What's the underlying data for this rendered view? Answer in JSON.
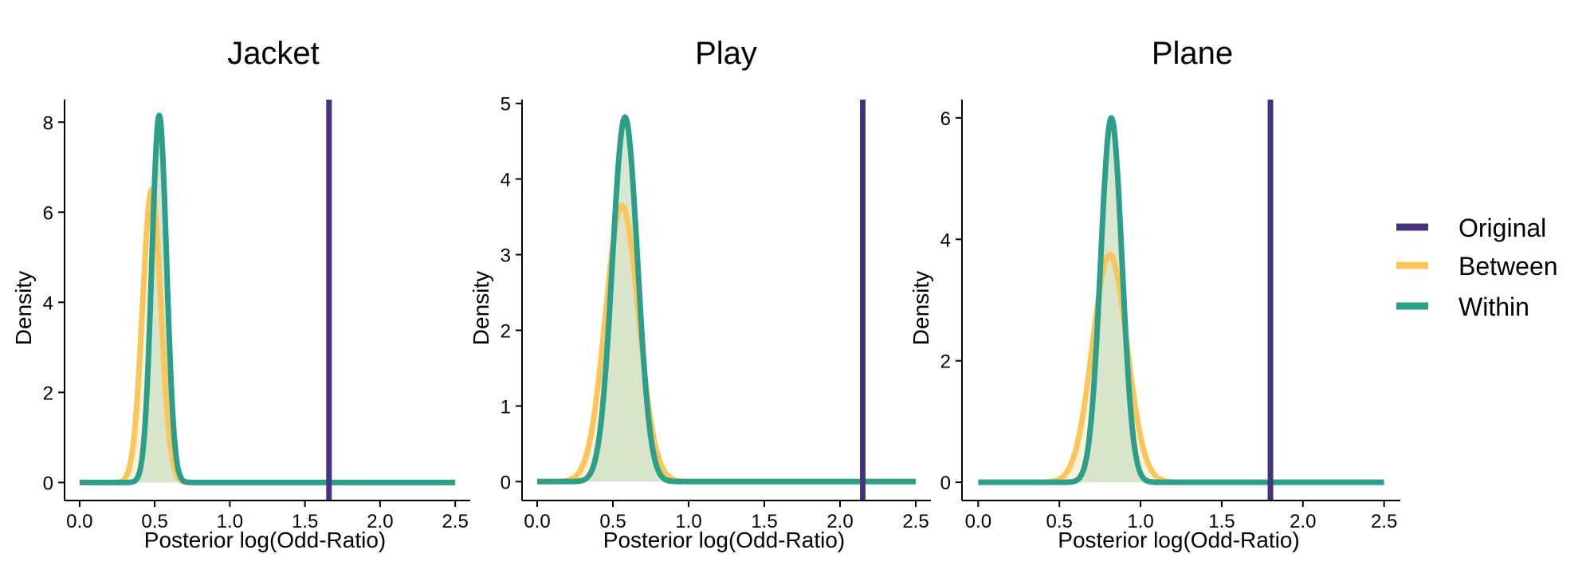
{
  "chart_data": [
    {
      "type": "line",
      "title": "Jacket",
      "xlabel": "Posterior log(Odd-Ratio)",
      "ylabel": "Density",
      "xlim": [
        -0.1,
        2.6
      ],
      "ylim": [
        -0.4,
        8.5
      ],
      "xticks": [
        "0.0",
        "0.5",
        "1.0",
        "1.5",
        "2.0",
        "2.5"
      ],
      "yticks": [
        "0",
        "2",
        "4",
        "6",
        "8"
      ],
      "original_x": 1.66,
      "series": [
        {
          "name": "Between",
          "mean": 0.48,
          "sd": 0.061,
          "peak": 6.5
        },
        {
          "name": "Within",
          "mean": 0.53,
          "sd": 0.049,
          "peak": 8.15
        }
      ]
    },
    {
      "type": "line",
      "title": "Play",
      "xlabel": "Posterior log(Odd-Ratio)",
      "ylabel": "Density",
      "xlim": [
        -0.1,
        2.6
      ],
      "ylim": [
        -0.25,
        5.05
      ],
      "xticks": [
        "0.0",
        "0.5",
        "1.0",
        "1.5",
        "2.0",
        "2.5"
      ],
      "yticks": [
        "0",
        "1",
        "2",
        "3",
        "4",
        "5"
      ],
      "original_x": 2.15,
      "series": [
        {
          "name": "Between",
          "mean": 0.56,
          "sd": 0.109,
          "peak": 3.65
        },
        {
          "name": "Within",
          "mean": 0.58,
          "sd": 0.083,
          "peak": 4.82
        }
      ]
    },
    {
      "type": "line",
      "title": "Plane",
      "xlabel": "Posterior log(Odd-Ratio)",
      "ylabel": "Density",
      "xlim": [
        -0.1,
        2.6
      ],
      "ylim": [
        -0.3,
        6.3
      ],
      "xticks": [
        "0.0",
        "0.5",
        "1.0",
        "1.5",
        "2.0",
        "2.5"
      ],
      "yticks": [
        "0",
        "2",
        "4",
        "6"
      ],
      "original_x": 1.8,
      "series": [
        {
          "name": "Between",
          "mean": 0.81,
          "sd": 0.106,
          "peak": 3.75
        },
        {
          "name": "Within",
          "mean": 0.82,
          "sd": 0.066,
          "peak": 6.0
        }
      ]
    }
  ],
  "legend": {
    "placement": "right",
    "items": [
      {
        "label": "Original",
        "color": "#46337e"
      },
      {
        "label": "Between",
        "color": "#fcc559"
      },
      {
        "label": "Within",
        "color": "#2c9f8a"
      }
    ]
  },
  "colors": {
    "original": "#46337e",
    "between": "#fcc559",
    "within": "#2c9f8a",
    "fill": "#d2e3c8",
    "axis": "#000000"
  }
}
